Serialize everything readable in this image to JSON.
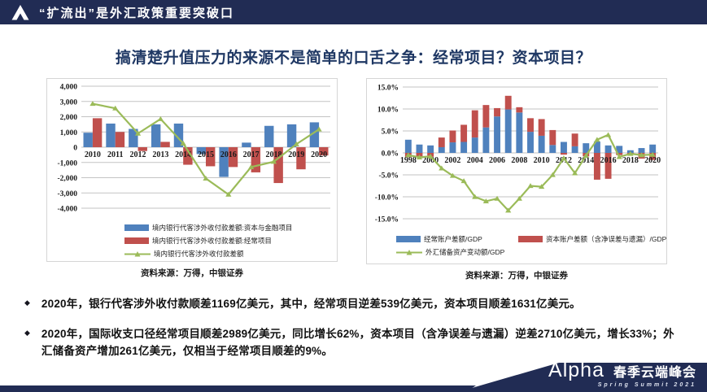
{
  "header": {
    "title": "“扩流出”是外汇政策重要突破口"
  },
  "slide": {
    "title": "搞清楚升值压力的来源不是简单的口舌之争：经常项目？资本项目？"
  },
  "colors": {
    "navy": "#212c54",
    "title_navy": "#1f3864",
    "bar_blue": "#4f81bd",
    "bar_red": "#c0504d",
    "line_green": "#9bbb59"
  },
  "chart_data": [
    {
      "type": "bar",
      "name": "bank-cross-border-flows",
      "title": "",
      "xlabel": "",
      "ylabel": "",
      "bar_mode": "grouped",
      "grid": true,
      "legend_position": "bottom",
      "ylim": [
        -4000,
        4000
      ],
      "ytick_step": 1000,
      "x_label_every": 1,
      "value_format": "thousands",
      "categories": [
        "2010",
        "2011",
        "2012",
        "2013",
        "2014",
        "2015",
        "2016",
        "2017",
        "2018",
        "2019",
        "2020"
      ],
      "series": [
        {
          "name": "境内银行代客涉外收付款差额:资本与金融项目",
          "color": "#4f81bd",
          "values": [
            950,
            1550,
            1200,
            1500,
            1550,
            -450,
            -1950,
            300,
            1400,
            1500,
            1631
          ]
        },
        {
          "name": "境内银行代客涉外收付款差额:经常项目",
          "color": "#c0504d",
          "values": [
            1900,
            1000,
            -250,
            350,
            -1150,
            -1250,
            -1300,
            -1650,
            -2350,
            -1450,
            -539
          ]
        }
      ],
      "line_series": [
        {
          "name": "境内银行代客涉外收付款差额",
          "color": "#9bbb59",
          "values": [
            2850,
            2550,
            900,
            1850,
            250,
            -2050,
            -3100,
            -1300,
            -950,
            200,
            1169
          ]
        }
      ]
    },
    {
      "type": "bar",
      "name": "bop-balance-to-gdp",
      "title": "",
      "xlabel": "",
      "ylabel": "",
      "bar_mode": "stacked",
      "grid": true,
      "legend_position": "bottom",
      "ylim": [
        -15,
        15
      ],
      "ytick_step": 5,
      "x_label_every": 2,
      "value_format": "percent1",
      "categories": [
        "1998",
        "1999",
        "2000",
        "2001",
        "2002",
        "2003",
        "2004",
        "2005",
        "2006",
        "2007",
        "2008",
        "2009",
        "2010",
        "2011",
        "2012",
        "2013",
        "2014",
        "2015",
        "2016",
        "2017",
        "2018",
        "2019",
        "2020"
      ],
      "series": [
        {
          "name": "经常账户差额/GDP",
          "color": "#4f81bd",
          "values": [
            3.0,
            1.9,
            1.7,
            1.3,
            2.4,
            2.5,
            3.5,
            5.8,
            8.3,
            9.9,
            9.2,
            4.8,
            3.9,
            1.8,
            2.5,
            1.5,
            2.2,
            2.6,
            1.7,
            1.6,
            0.6,
            1.1,
            1.9
          ]
        },
        {
          "name": "资本账户差额（含净误差与遗漏）/GDP",
          "color": "#c0504d",
          "values": [
            -1.0,
            -1.0,
            -0.9,
            2.2,
            2.7,
            3.9,
            6.2,
            5.1,
            1.9,
            3.1,
            1.2,
            3.1,
            3.8,
            3.4,
            -0.4,
            2.9,
            -0.8,
            -6.1,
            -5.9,
            -0.5,
            -0.3,
            -1.3,
            -1.6
          ]
        }
      ],
      "line_series": [
        {
          "name": "外汇储备资产变动额/GDP",
          "color": "#9bbb59",
          "values": [
            -0.5,
            -1.0,
            -0.8,
            -3.5,
            -5.2,
            -6.4,
            -10.0,
            -11.0,
            -10.4,
            -13.1,
            -10.4,
            -7.5,
            -7.7,
            -5.0,
            -1.2,
            -4.6,
            -0.6,
            3.0,
            4.1,
            -0.9,
            -0.2,
            -0.5,
            -0.4
          ]
        }
      ]
    }
  ],
  "sources": {
    "left": "资料来源：万得，中银证券",
    "right": "资料来源：万得，中银证券"
  },
  "bullets": [
    "2020年，银行代客涉外收付款顺差1169亿美元，其中，经常项目逆差539亿美元，资本项目顺差1631亿美元。",
    "2020年，国际收支口径经常项目顺差2989亿美元，同比增长62%，资本项目（含净误差与遗漏）逆差2710亿美元，增长33%；外汇储备资产增加261亿美元，仅相当于经常项目顺差的9%。"
  ],
  "footer": {
    "wordmark": "Alpha",
    "event": "春季云端峰会",
    "subtitle": "Spring Summit 2021"
  }
}
